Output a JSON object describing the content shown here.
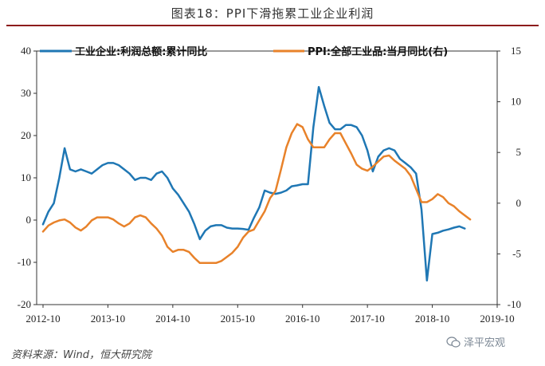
{
  "figure_title": "图表18：PPI下滑拖累工业企业利润",
  "source": "资料来源：Wind，恒大研究院",
  "watermark": "泽平宏观",
  "colors": {
    "profit": "#1f77b4",
    "ppi": "#e8822a",
    "axis": "#333333",
    "title_rule": "#8c1c1c"
  },
  "chart_data": {
    "type": "line",
    "title": "PPI下滑拖累工业企业利润",
    "x_labels": [
      "2012-10",
      "2013-10",
      "2014-10",
      "2015-10",
      "2016-10",
      "2017-10",
      "2018-10",
      "2019-10"
    ],
    "left_axis": {
      "min": -20,
      "max": 40,
      "ticks": [
        -20,
        -10,
        0,
        10,
        20,
        30,
        40
      ]
    },
    "right_axis": {
      "min": -10,
      "max": 15,
      "ticks": [
        -10,
        -5,
        0,
        5,
        10,
        15
      ]
    },
    "series": [
      {
        "name": "工业企业:利润总额:累计同比",
        "axis": "left",
        "start": "2012-10",
        "values": [
          -1,
          2,
          4,
          10,
          17,
          12,
          11.5,
          12,
          11.5,
          11,
          12,
          13,
          13.5,
          13.5,
          13,
          12,
          11,
          9.5,
          10,
          10,
          9.5,
          11,
          11.5,
          10,
          7.5,
          6,
          4,
          2,
          -1,
          -4.5,
          -2.5,
          -1.5,
          -1.2,
          -1.2,
          -1.8,
          -2,
          -2,
          -2.1,
          -2.3,
          0.5,
          3,
          7,
          6.5,
          6.2,
          6.5,
          7,
          8,
          8.2,
          8.5,
          8.5,
          22,
          31.5,
          27,
          23,
          21.5,
          21.5,
          22.5,
          22.5,
          22,
          20,
          16.5,
          11.5,
          15,
          16.5,
          17,
          16.5,
          14.5,
          13.5,
          12.5,
          11,
          2.5,
          -14.3,
          -3.3,
          -3,
          -2.5,
          -2.2,
          -1.8,
          -1.5,
          -2
        ]
      },
      {
        "name": "PPI:全部工业品:当月同比(右)",
        "axis": "right",
        "start": "2012-10",
        "values": [
          -2.8,
          -2.2,
          -1.9,
          -1.7,
          -1.6,
          -1.9,
          -2.4,
          -2.7,
          -2.3,
          -1.7,
          -1.4,
          -1.4,
          -1.4,
          -1.6,
          -2,
          -2.3,
          -2.0,
          -1.4,
          -1.2,
          -1.4,
          -2,
          -2.5,
          -3.2,
          -4.3,
          -4.8,
          -4.6,
          -4.6,
          -4.8,
          -5.4,
          -5.9,
          -5.9,
          -5.9,
          -5.9,
          -5.7,
          -5.3,
          -4.9,
          -4.3,
          -3.4,
          -2.8,
          -2.6,
          -1.7,
          -0.8,
          0.5,
          1.2,
          3.3,
          5.5,
          6.9,
          7.8,
          7.5,
          6.3,
          5.5,
          5.5,
          5.5,
          6.3,
          6.9,
          6.9,
          5.9,
          4.9,
          3.8,
          3.4,
          3.2,
          3.6,
          4.1,
          4.6,
          4.7,
          4.2,
          3.8,
          3.4,
          2.7,
          1.4,
          0.1,
          0.1,
          0.4,
          0.9,
          0.6,
          0,
          -0.3,
          -0.8,
          -1.2,
          -1.6
        ]
      }
    ]
  }
}
